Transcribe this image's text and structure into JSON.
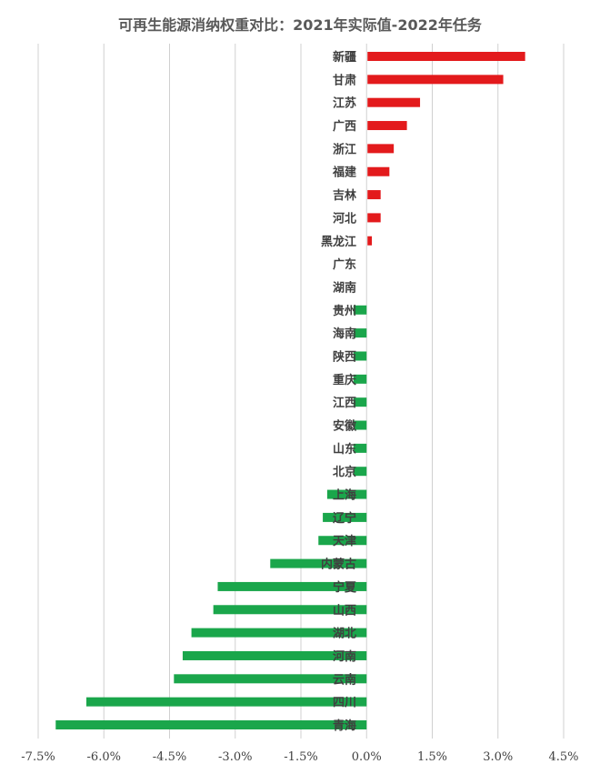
{
  "chart_data": {
    "type": "bar",
    "orientation": "horizontal",
    "title": "可再生能源消纳权重对比：2021年实际值-2022年任务",
    "categories": [
      "新疆",
      "甘肃",
      "江苏",
      "广西",
      "浙江",
      "福建",
      "吉林",
      "河北",
      "黑龙江",
      "广东",
      "湖南",
      "贵州",
      "海南",
      "陕西",
      "重庆",
      "江西",
      "安徽",
      "山东",
      "北京",
      "上海",
      "辽宁",
      "天津",
      "内蒙古",
      "宁夏",
      "山西",
      "湖北",
      "河南",
      "云南",
      "四川",
      "青海"
    ],
    "values": [
      3.6,
      3.1,
      1.2,
      0.9,
      0.6,
      0.5,
      0.3,
      0.3,
      0.1,
      0,
      0,
      -0.3,
      -0.3,
      -0.3,
      -0.3,
      -0.3,
      -0.3,
      -0.3,
      -0.3,
      -0.9,
      -1.0,
      -1.1,
      -2.2,
      -3.4,
      -3.5,
      -4.0,
      -4.2,
      -4.4,
      -6.4,
      -7.1
    ],
    "unit": "%",
    "xlim": [
      -7.5,
      4.5
    ],
    "xticks": [
      "-7.5%",
      "-6.0%",
      "-4.5%",
      "-3.0%",
      "-1.5%",
      "0.0%",
      "1.5%",
      "3.0%",
      "4.5%"
    ],
    "xtick_values": [
      -7.5,
      -6.0,
      -4.5,
      -3.0,
      -1.5,
      0,
      1.5,
      3.0,
      4.5
    ],
    "grid": "vertical",
    "colors": {
      "positive": "#e31a1c",
      "negative": "#1aa64b",
      "grid": "#d0d0d0",
      "label": "#404040"
    }
  }
}
